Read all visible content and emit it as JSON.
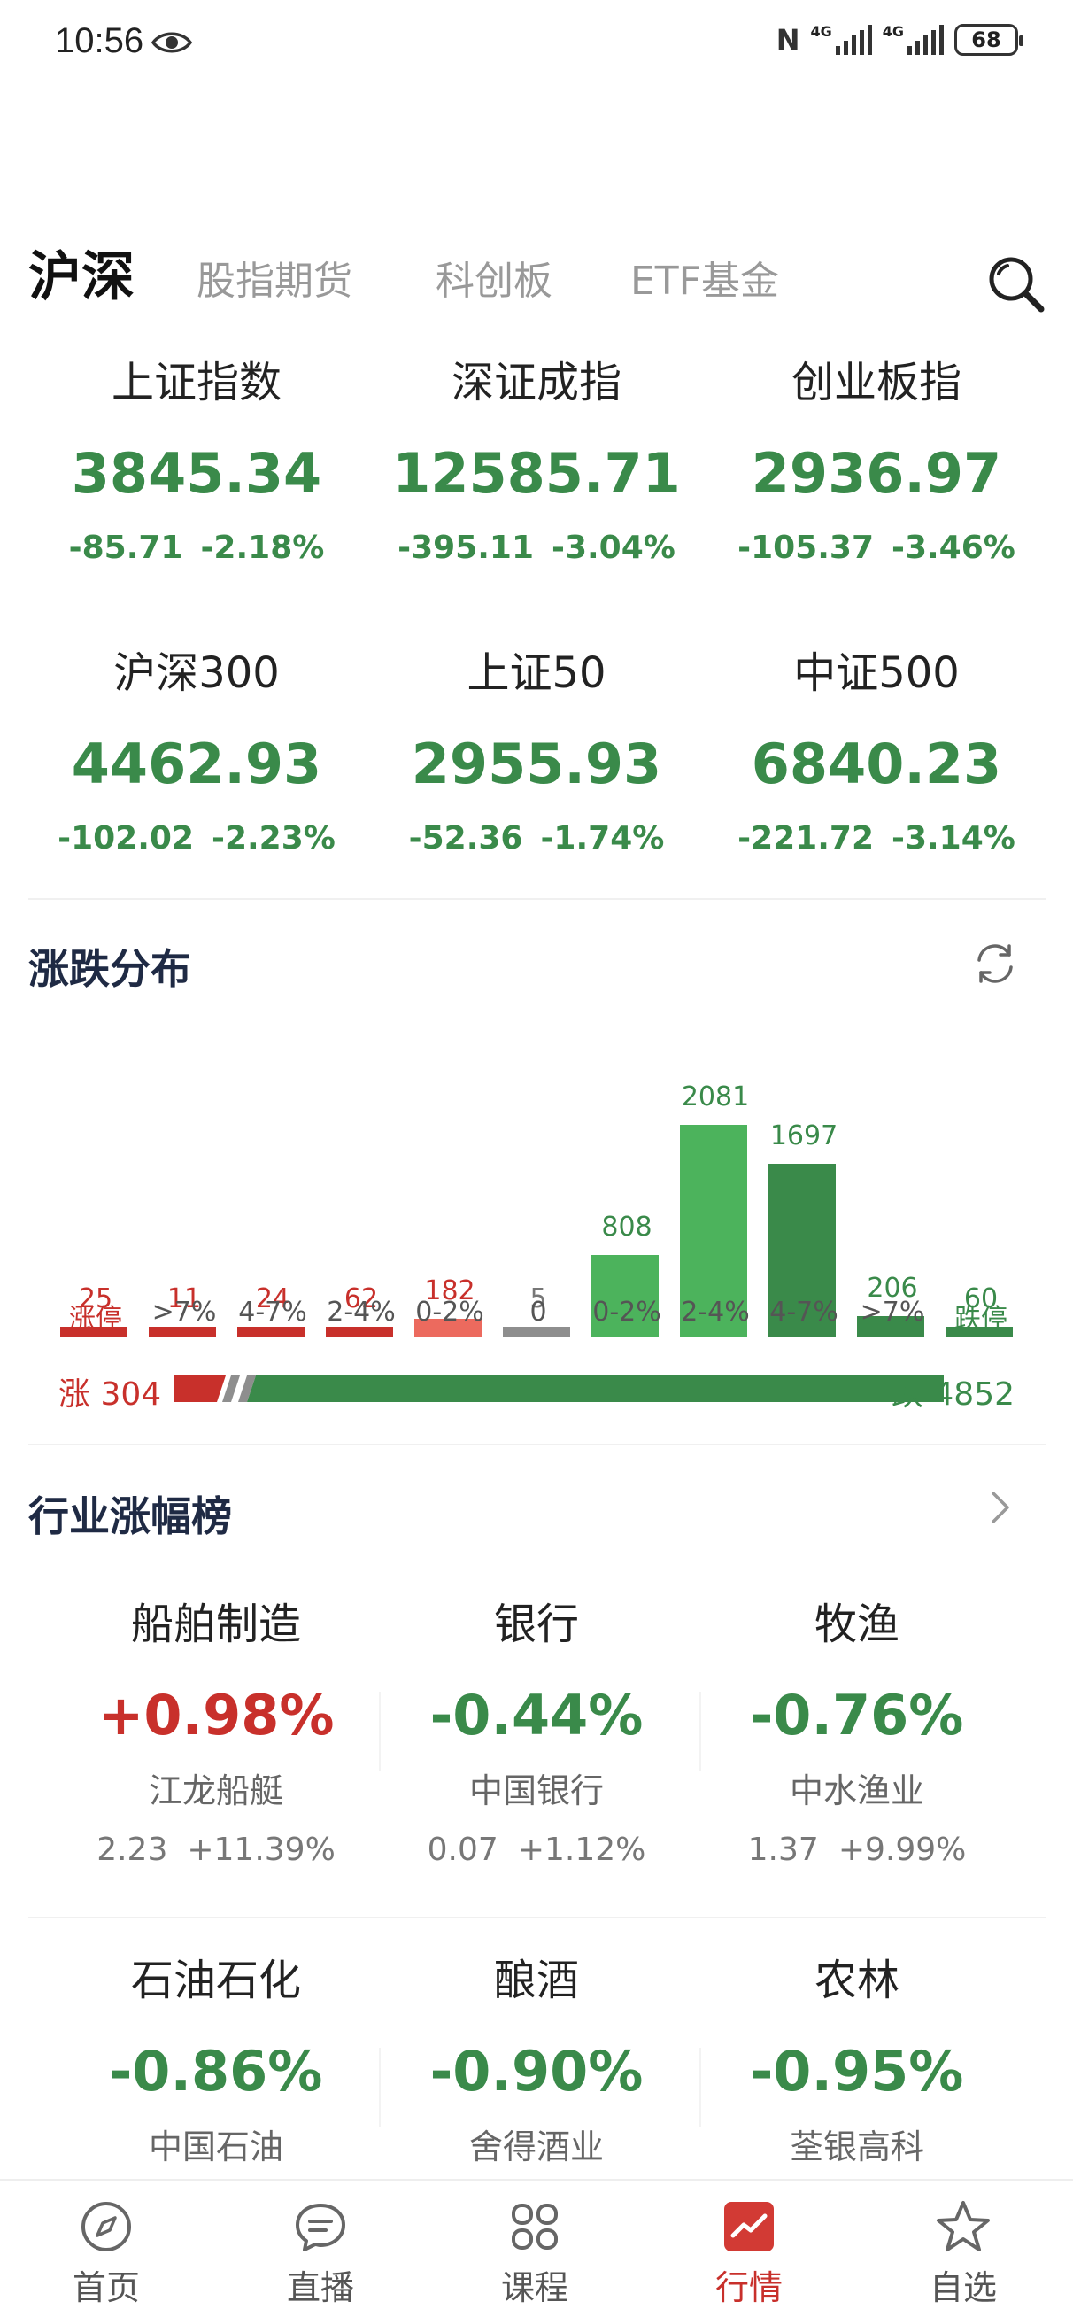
{
  "status_bar": {
    "time": "10:56",
    "network_1": "4G",
    "network_2": "4G",
    "battery": "68"
  },
  "tabs": [
    {
      "label": "沪深",
      "active": true
    },
    {
      "label": "股指期货",
      "active": false
    },
    {
      "label": "科创板",
      "active": false
    },
    {
      "label": "ETF基金",
      "active": false
    }
  ],
  "indices": [
    {
      "name": "上证指数",
      "value": "3845.34",
      "change": "-85.71",
      "pct": "-2.18%"
    },
    {
      "name": "深证成指",
      "value": "12585.71",
      "change": "-395.11",
      "pct": "-3.04%"
    },
    {
      "name": "创业板指",
      "value": "2936.97",
      "change": "-105.37",
      "pct": "-3.46%"
    },
    {
      "name": "沪深300",
      "value": "4462.93",
      "change": "-102.02",
      "pct": "-2.23%"
    },
    {
      "name": "上证50",
      "value": "2955.93",
      "change": "-52.36",
      "pct": "-1.74%"
    },
    {
      "name": "中证500",
      "value": "6840.23",
      "change": "-221.72",
      "pct": "-3.14%"
    }
  ],
  "distribution": {
    "title": "涨跌分布",
    "buckets": [
      {
        "label": "涨停",
        "count": "25",
        "value": 25,
        "kind": "up"
      },
      {
        "label": ">7%",
        "count": "11",
        "value": 11,
        "kind": "up"
      },
      {
        "label": "4-7%",
        "count": "24",
        "value": 24,
        "kind": "up"
      },
      {
        "label": "2-4%",
        "count": "62",
        "value": 62,
        "kind": "up"
      },
      {
        "label": "0-2%",
        "count": "182",
        "value": 182,
        "kind": "up-light"
      },
      {
        "label": "0",
        "count": "5",
        "value": 5,
        "kind": "flat"
      },
      {
        "label": "0-2%",
        "count": "808",
        "value": 808,
        "kind": "down-light"
      },
      {
        "label": "2-4%",
        "count": "2081",
        "value": 2081,
        "kind": "down-light"
      },
      {
        "label": "4-7%",
        "count": "1697",
        "value": 1697,
        "kind": "down"
      },
      {
        "label": ">7%",
        "count": "206",
        "value": 206,
        "kind": "down"
      },
      {
        "label": "跌停",
        "count": "60",
        "value": 60,
        "kind": "down"
      }
    ],
    "up_label": "涨 304",
    "up_total": 304,
    "down_label": "跌 4852",
    "down_total": 4852,
    "colors": {
      "up": "#c8302b",
      "up_light": "#ec6a5e",
      "flat": "#8e8e8e",
      "down": "#3a8a4a",
      "down_light": "#4cb35c"
    }
  },
  "industry": {
    "title": "行业涨幅榜",
    "items": [
      {
        "name": "船舶制造",
        "pct": "+0.98%",
        "direction": "up",
        "stock": "江龙船艇",
        "price": "2.23",
        "stock_pct": "+11.39%"
      },
      {
        "name": "银行",
        "pct": "-0.44%",
        "direction": "down",
        "stock": "中国银行",
        "price": "0.07",
        "stock_pct": "+1.12%"
      },
      {
        "name": "牧渔",
        "pct": "-0.76%",
        "direction": "down",
        "stock": "中水渔业",
        "price": "1.37",
        "stock_pct": "+9.99%"
      },
      {
        "name": "石油石化",
        "pct": "-0.86%",
        "direction": "down",
        "stock": "中国石油",
        "price": "",
        "stock_pct": ""
      },
      {
        "name": "酿酒",
        "pct": "-0.90%",
        "direction": "down",
        "stock": "舍得酒业",
        "price": "",
        "stock_pct": ""
      },
      {
        "name": "农林",
        "pct": "-0.95%",
        "direction": "down",
        "stock": "荃银高科",
        "price": "",
        "stock_pct": ""
      }
    ]
  },
  "bottom_nav": [
    {
      "label": "首页",
      "icon": "compass-icon"
    },
    {
      "label": "直播",
      "icon": "chat-icon"
    },
    {
      "label": "课程",
      "icon": "grid-icon"
    },
    {
      "label": "行情",
      "icon": "chart-icon",
      "active": true
    },
    {
      "label": "自选",
      "icon": "star-icon"
    }
  ]
}
